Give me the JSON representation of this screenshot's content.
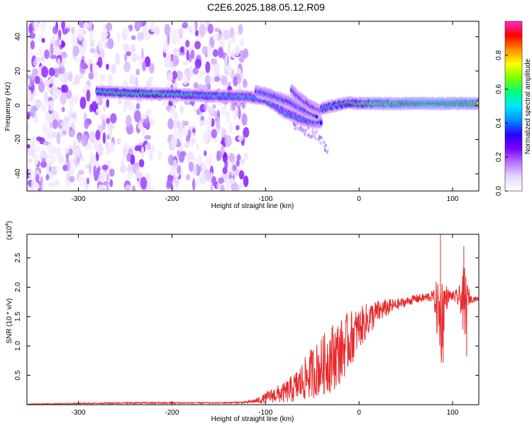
{
  "title": "C2E6.2025.188.05.12.R09",
  "colors": {
    "snr_line": "#e8292b",
    "colormap": [
      "#ffffff",
      "#e9d8ff",
      "#b577ff",
      "#7a00ff",
      "#2a00ff",
      "#0090ff",
      "#00e5ff",
      "#00ff7a",
      "#7dff00",
      "#ffff00",
      "#ff8c00",
      "#ff0000",
      "#ff2ad0"
    ]
  },
  "chart_data": [
    {
      "type": "heatmap",
      "xlabel": "Height of straight line (km)",
      "ylabel": "Frequency (Hz)",
      "xlim": [
        -355,
        128
      ],
      "ylim": [
        -50,
        49
      ],
      "xticks": [
        -300,
        -200,
        -100,
        0,
        100
      ],
      "xtick_labels": [
        "-300",
        "-200",
        "-100",
        "0",
        "100"
      ],
      "yticks": [
        -40,
        -20,
        0,
        20,
        40
      ],
      "ytick_labels": [
        "-40",
        "-20",
        "0",
        "20",
        "40"
      ],
      "colorbar": {
        "label": "Normalized spectral amplitude",
        "range": [
          0,
          1
        ],
        "ticks": [
          0.0,
          0.2,
          0.4,
          0.6,
          0.8
        ],
        "tick_labels": [
          "0.0",
          "0.2",
          "0.4",
          "0.6",
          "0.8"
        ]
      },
      "noise_region": {
        "x": [
          -355,
          -120
        ],
        "freq": [
          -50,
          49
        ]
      },
      "noise_gaps": [
        [
          -262,
          -250
        ],
        [
          -220,
          -205
        ]
      ],
      "ridges": [
        {
          "x": [
            -280,
            -240,
            -200,
            -160,
            -120,
            -100,
            -90,
            -80,
            -70,
            -62,
            -55,
            -48,
            -40
          ],
          "freq": [
            8,
            7,
            6.5,
            5.5,
            5,
            3.5,
            0,
            -4,
            -6,
            -8,
            -9,
            -10,
            -10
          ],
          "amplitude": [
            0.55,
            0.6,
            0.55,
            0.5,
            0.45,
            0.5,
            0.45,
            0.45,
            0.45,
            0.45,
            0.4,
            0.35,
            0.3
          ]
        },
        {
          "x": [
            -110,
            -95,
            -85,
            -75,
            -65,
            -58,
            -50,
            -45
          ],
          "freq": [
            8,
            6,
            4,
            2,
            -1,
            -3,
            -5,
            -6
          ],
          "amplitude": [
            0.35,
            0.35,
            0.35,
            0.35,
            0.35,
            0.35,
            0.3,
            0.3
          ]
        },
        {
          "x": [
            -72,
            -65,
            -58,
            -50,
            -42
          ],
          "freq": [
            9,
            5,
            2,
            -1,
            -3
          ],
          "amplitude": [
            0.3,
            0.3,
            0.3,
            0.3,
            0.25
          ]
        },
        {
          "x": [
            -40,
            -25,
            -10,
            0,
            20,
            40,
            60,
            80,
            100,
            120,
            128
          ],
          "freq": [
            -2,
            0,
            1.5,
            1,
            1,
            1,
            1,
            1,
            1,
            1,
            1
          ],
          "amplitude": [
            0.55,
            0.6,
            0.65,
            0.7,
            0.8,
            0.85,
            0.9,
            0.95,
            0.9,
            0.85,
            0.8
          ]
        }
      ],
      "tail": {
        "x": [
          -70,
          -60,
          -50,
          -45,
          -40,
          -32
        ],
        "freq": [
          -10,
          -14,
          -16,
          -18,
          -21,
          -28
        ]
      }
    },
    {
      "type": "line",
      "xlabel": "Height of straight line (km)",
      "ylabel": "SNR (10 * v/v)",
      "multiplier_label": "(x10",
      "multiplier_exponent": "4",
      "xlim": [
        -355,
        128
      ],
      "ylim": [
        0,
        2.9
      ],
      "xticks": [
        -300,
        -200,
        -100,
        0,
        100
      ],
      "xtick_labels": [
        "-300",
        "-200",
        "-100",
        "0",
        "100"
      ],
      "yticks": [
        0.5,
        1.0,
        1.5,
        2.0,
        2.5
      ],
      "ytick_labels": [
        "0.5",
        "1.0",
        "1.5",
        "2.0",
        "2.5"
      ],
      "series": [
        {
          "x": [
            -355,
            -300,
            -250,
            -200,
            -150,
            -120,
            -105,
            -95,
            -80,
            -70,
            -60,
            -50,
            -40,
            -30,
            -20,
            -10,
            0,
            10,
            20,
            30,
            40,
            50,
            60,
            70,
            80,
            84,
            88,
            92,
            96,
            100,
            105,
            110,
            113,
            116,
            120,
            128
          ],
          "values": [
            0.01,
            0.02,
            0.03,
            0.03,
            0.03,
            0.04,
            0.08,
            0.15,
            0.2,
            0.28,
            0.4,
            0.55,
            0.65,
            0.8,
            0.9,
            1.1,
            1.3,
            1.45,
            1.58,
            1.65,
            1.7,
            1.75,
            1.8,
            1.82,
            1.85,
            1.6,
            1.45,
            1.8,
            1.85,
            1.85,
            1.82,
            1.8,
            1.6,
            1.85,
            1.8,
            1.8
          ],
          "noise": [
            0.005,
            0.01,
            0.015,
            0.015,
            0.01,
            0.02,
            0.06,
            0.12,
            0.18,
            0.25,
            0.35,
            0.45,
            0.5,
            0.6,
            0.55,
            0.5,
            0.35,
            0.3,
            0.2,
            0.15,
            0.1,
            0.08,
            0.08,
            0.08,
            0.1,
            0.6,
            0.8,
            0.3,
            0.1,
            0.08,
            0.15,
            0.3,
            0.9,
            0.2,
            0.06,
            0.03
          ]
        }
      ],
      "peaks": [
        {
          "x": 87,
          "y": 2.9
        },
        {
          "x": 90,
          "y": 0.72
        },
        {
          "x": 112,
          "y": 2.7
        },
        {
          "x": 115,
          "y": 0.82
        }
      ]
    }
  ]
}
